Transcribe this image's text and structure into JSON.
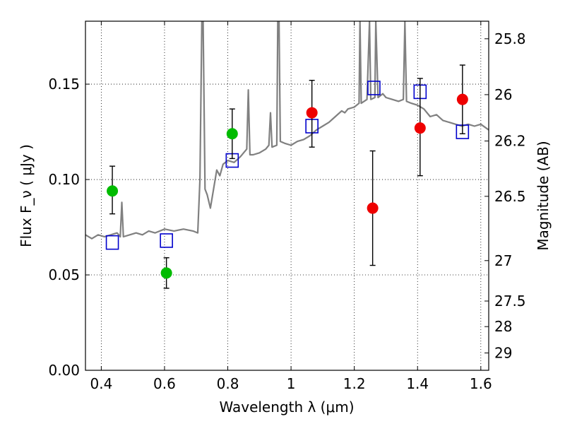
{
  "chart_data": {
    "type": "scatter",
    "xlabel": "Wavelength  λ (μm)",
    "ylabel": "Flux  F_ν  ( μJy )",
    "y2label": "Magnitude (AB)",
    "xlim": [
      0.35,
      1.625
    ],
    "ylim": [
      0.0,
      0.183
    ],
    "grid": true,
    "x_ticks": [
      0.4,
      0.6,
      0.8,
      1.0,
      1.2,
      1.4,
      1.6
    ],
    "x_tick_labels": [
      "0.4",
      "0.6",
      "0.8",
      "1",
      "1.2",
      "1.4",
      "1.6"
    ],
    "y_ticks": [
      0.0,
      0.05,
      0.1,
      0.15
    ],
    "y_tick_labels": [
      "0.00",
      "0.05",
      "0.10",
      "0.15"
    ],
    "y2_ticks": [
      {
        "label": "25.8",
        "flux": 0.1738
      },
      {
        "label": "26",
        "flux": 0.1445
      },
      {
        "label": "26.2",
        "flux": 0.1202
      },
      {
        "label": "26.5",
        "flux": 0.0912
      },
      {
        "label": "27",
        "flux": 0.0575
      },
      {
        "label": "27.5",
        "flux": 0.0363
      },
      {
        "label": "28",
        "flux": 0.0229
      },
      {
        "label": "29",
        "flux": 0.0091
      }
    ],
    "series": [
      {
        "marker": "circle",
        "color": "#00bb00",
        "points": [
          {
            "x": 0.435,
            "y": 0.094,
            "ylo": 0.082,
            "yhi": 0.107
          },
          {
            "x": 0.606,
            "y": 0.051,
            "ylo": 0.043,
            "yhi": 0.059
          },
          {
            "x": 0.814,
            "y": 0.124,
            "ylo": 0.111,
            "yhi": 0.137
          }
        ]
      },
      {
        "marker": "circle",
        "color": "#ee0000",
        "points": [
          {
            "x": 1.066,
            "y": 0.135,
            "ylo": 0.117,
            "yhi": 0.152
          },
          {
            "x": 1.258,
            "y": 0.085,
            "ylo": 0.055,
            "yhi": 0.115
          },
          {
            "x": 1.408,
            "y": 0.127,
            "ylo": 0.102,
            "yhi": 0.153
          },
          {
            "x": 1.542,
            "y": 0.142,
            "ylo": 0.124,
            "yhi": 0.16
          }
        ]
      },
      {
        "marker": "square-open",
        "color": "#0000cc",
        "points": [
          {
            "x": 0.435,
            "y": 0.067
          },
          {
            "x": 0.606,
            "y": 0.068
          },
          {
            "x": 0.814,
            "y": 0.11
          },
          {
            "x": 1.066,
            "y": 0.128
          },
          {
            "x": 1.262,
            "y": 0.148
          },
          {
            "x": 1.408,
            "y": 0.146
          },
          {
            "x": 1.542,
            "y": 0.125
          }
        ]
      },
      {
        "marker": "line",
        "color": "#808080",
        "points": [
          {
            "x": 0.35,
            "y": 0.071
          },
          {
            "x": 0.37,
            "y": 0.069
          },
          {
            "x": 0.39,
            "y": 0.071
          },
          {
            "x": 0.41,
            "y": 0.07
          },
          {
            "x": 0.43,
            "y": 0.071
          },
          {
            "x": 0.45,
            "y": 0.072
          },
          {
            "x": 0.46,
            "y": 0.07
          },
          {
            "x": 0.465,
            "y": 0.088
          },
          {
            "x": 0.47,
            "y": 0.07
          },
          {
            "x": 0.49,
            "y": 0.071
          },
          {
            "x": 0.51,
            "y": 0.072
          },
          {
            "x": 0.53,
            "y": 0.071
          },
          {
            "x": 0.55,
            "y": 0.073
          },
          {
            "x": 0.57,
            "y": 0.072
          },
          {
            "x": 0.6,
            "y": 0.074
          },
          {
            "x": 0.63,
            "y": 0.073
          },
          {
            "x": 0.66,
            "y": 0.074
          },
          {
            "x": 0.69,
            "y": 0.073
          },
          {
            "x": 0.705,
            "y": 0.072
          },
          {
            "x": 0.712,
            "y": 0.1
          },
          {
            "x": 0.718,
            "y": 0.183
          },
          {
            "x": 0.722,
            "y": 0.183
          },
          {
            "x": 0.728,
            "y": 0.095
          },
          {
            "x": 0.735,
            "y": 0.092
          },
          {
            "x": 0.745,
            "y": 0.085
          },
          {
            "x": 0.755,
            "y": 0.095
          },
          {
            "x": 0.765,
            "y": 0.105
          },
          {
            "x": 0.775,
            "y": 0.102
          },
          {
            "x": 0.785,
            "y": 0.108
          },
          {
            "x": 0.8,
            "y": 0.11
          },
          {
            "x": 0.82,
            "y": 0.109
          },
          {
            "x": 0.84,
            "y": 0.112
          },
          {
            "x": 0.86,
            "y": 0.116
          },
          {
            "x": 0.865,
            "y": 0.147
          },
          {
            "x": 0.87,
            "y": 0.113
          },
          {
            "x": 0.88,
            "y": 0.113
          },
          {
            "x": 0.9,
            "y": 0.114
          },
          {
            "x": 0.92,
            "y": 0.116
          },
          {
            "x": 0.93,
            "y": 0.118
          },
          {
            "x": 0.935,
            "y": 0.135
          },
          {
            "x": 0.94,
            "y": 0.117
          },
          {
            "x": 0.955,
            "y": 0.118
          },
          {
            "x": 0.958,
            "y": 0.183
          },
          {
            "x": 0.962,
            "y": 0.183
          },
          {
            "x": 0.966,
            "y": 0.12
          },
          {
            "x": 0.98,
            "y": 0.119
          },
          {
            "x": 1.0,
            "y": 0.118
          },
          {
            "x": 1.02,
            "y": 0.12
          },
          {
            "x": 1.04,
            "y": 0.121
          },
          {
            "x": 1.06,
            "y": 0.123
          },
          {
            "x": 1.08,
            "y": 0.126
          },
          {
            "x": 1.1,
            "y": 0.128
          },
          {
            "x": 1.12,
            "y": 0.13
          },
          {
            "x": 1.14,
            "y": 0.133
          },
          {
            "x": 1.16,
            "y": 0.136
          },
          {
            "x": 1.17,
            "y": 0.135
          },
          {
            "x": 1.18,
            "y": 0.137
          },
          {
            "x": 1.2,
            "y": 0.138
          },
          {
            "x": 1.215,
            "y": 0.14
          },
          {
            "x": 1.218,
            "y": 0.183
          },
          {
            "x": 1.222,
            "y": 0.14
          },
          {
            "x": 1.24,
            "y": 0.142
          },
          {
            "x": 1.248,
            "y": 0.183
          },
          {
            "x": 1.252,
            "y": 0.142
          },
          {
            "x": 1.265,
            "y": 0.143
          },
          {
            "x": 1.268,
            "y": 0.183
          },
          {
            "x": 1.275,
            "y": 0.143
          },
          {
            "x": 1.29,
            "y": 0.145
          },
          {
            "x": 1.3,
            "y": 0.143
          },
          {
            "x": 1.32,
            "y": 0.142
          },
          {
            "x": 1.34,
            "y": 0.141
          },
          {
            "x": 1.355,
            "y": 0.142
          },
          {
            "x": 1.36,
            "y": 0.183
          },
          {
            "x": 1.365,
            "y": 0.141
          },
          {
            "x": 1.38,
            "y": 0.14
          },
          {
            "x": 1.4,
            "y": 0.139
          },
          {
            "x": 1.42,
            "y": 0.137
          },
          {
            "x": 1.44,
            "y": 0.133
          },
          {
            "x": 1.46,
            "y": 0.134
          },
          {
            "x": 1.48,
            "y": 0.131
          },
          {
            "x": 1.5,
            "y": 0.13
          },
          {
            "x": 1.52,
            "y": 0.129
          },
          {
            "x": 1.54,
            "y": 0.128
          },
          {
            "x": 1.56,
            "y": 0.129
          },
          {
            "x": 1.58,
            "y": 0.128
          },
          {
            "x": 1.6,
            "y": 0.129
          },
          {
            "x": 1.625,
            "y": 0.126
          }
        ]
      }
    ]
  }
}
